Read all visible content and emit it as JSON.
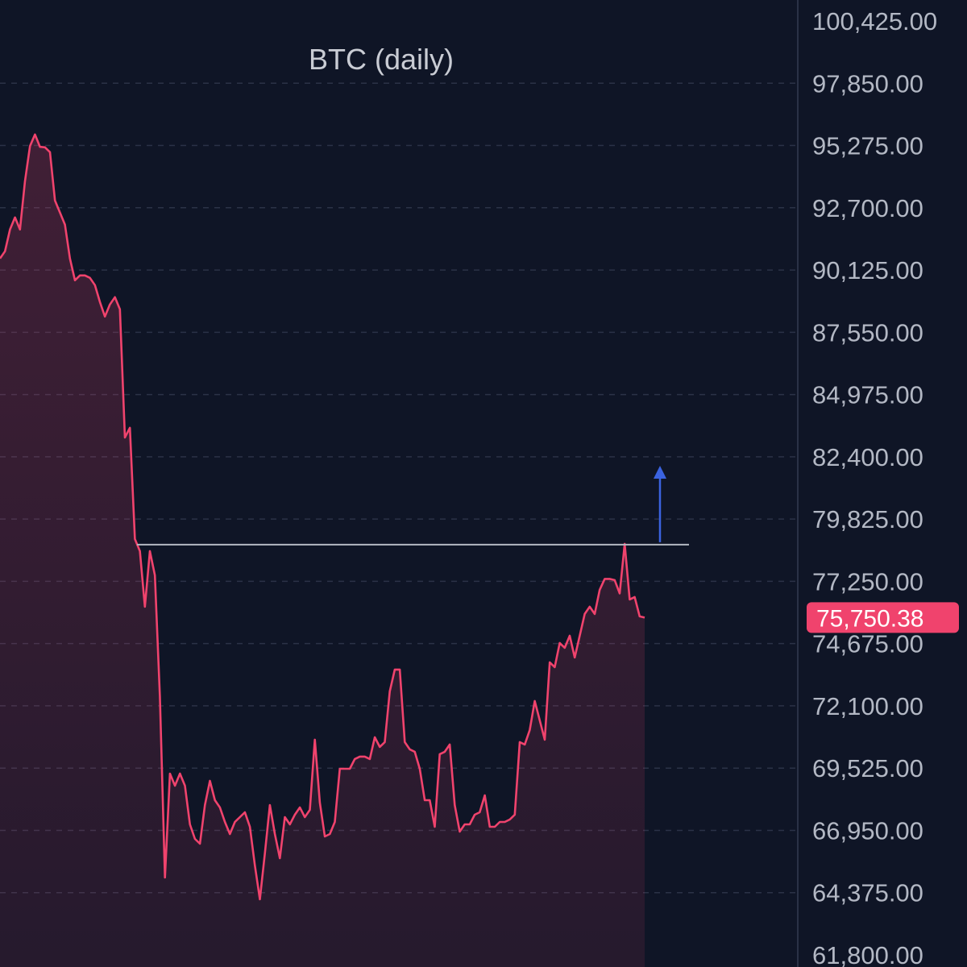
{
  "chart_data": {
    "type": "area",
    "title": "BTC (daily)",
    "xlabel": "",
    "ylabel": "",
    "ylim": [
      61800,
      100425
    ],
    "yticks": [
      "100,425.00",
      "97,850.00",
      "95,275.00",
      "92,700.00",
      "90,125.00",
      "87,550.00",
      "84,975.00",
      "82,400.00",
      "79,825.00",
      "77,250.00",
      "74,675.00",
      "72,100.00",
      "69,525.00",
      "66,950.00",
      "64,375.00",
      "61,800.00"
    ],
    "current_price": 75750.38,
    "current_price_label": "75,750.38",
    "resistance_level": 78800,
    "grid": true,
    "colors": {
      "line": "#f0436d",
      "badge": "#f0436d",
      "arrow": "#3b63e0",
      "resistance_line": "#b4b8c2",
      "background": "#0f1526"
    },
    "series": [
      {
        "values": [
          90600,
          90900,
          91800,
          92300,
          91800,
          93800,
          95250,
          95730,
          95220,
          95200,
          95000,
          93000,
          92500,
          92000,
          90600,
          89700,
          89900,
          89900,
          89800,
          89500,
          88800,
          88200,
          88700,
          89000,
          88500,
          83200,
          83600,
          79000,
          78500,
          76200,
          78500,
          77500,
          72500,
          65000,
          69300,
          68800,
          69300,
          68800,
          67200,
          66600,
          66400,
          68000,
          69000,
          68200,
          67900,
          67300,
          66800,
          67300,
          67500,
          67700,
          67100,
          65500,
          64100,
          66000,
          68000,
          66800,
          65800,
          67500,
          67200,
          67600,
          67900,
          67500,
          67800,
          70700,
          68100,
          66700,
          66800,
          67300,
          69500,
          69500,
          69500,
          69900,
          70000,
          70000,
          69900,
          70800,
          70400,
          70600,
          72700,
          73600,
          73600,
          70600,
          70300,
          70200,
          69500,
          68200,
          68200,
          67100,
          70100,
          70200,
          70500,
          68000,
          66900,
          67200,
          67200,
          67600,
          67700,
          68400,
          67100,
          67100,
          67300,
          67300,
          67400,
          67600,
          70600,
          70500,
          71100,
          72300,
          71500,
          70700,
          73900,
          73700,
          74700,
          74500,
          75000,
          74100,
          75000,
          75900,
          76200,
          75900,
          76900,
          77350,
          77350,
          77300,
          76750,
          78800,
          76500,
          76600,
          75800,
          75750
        ]
      }
    ]
  }
}
